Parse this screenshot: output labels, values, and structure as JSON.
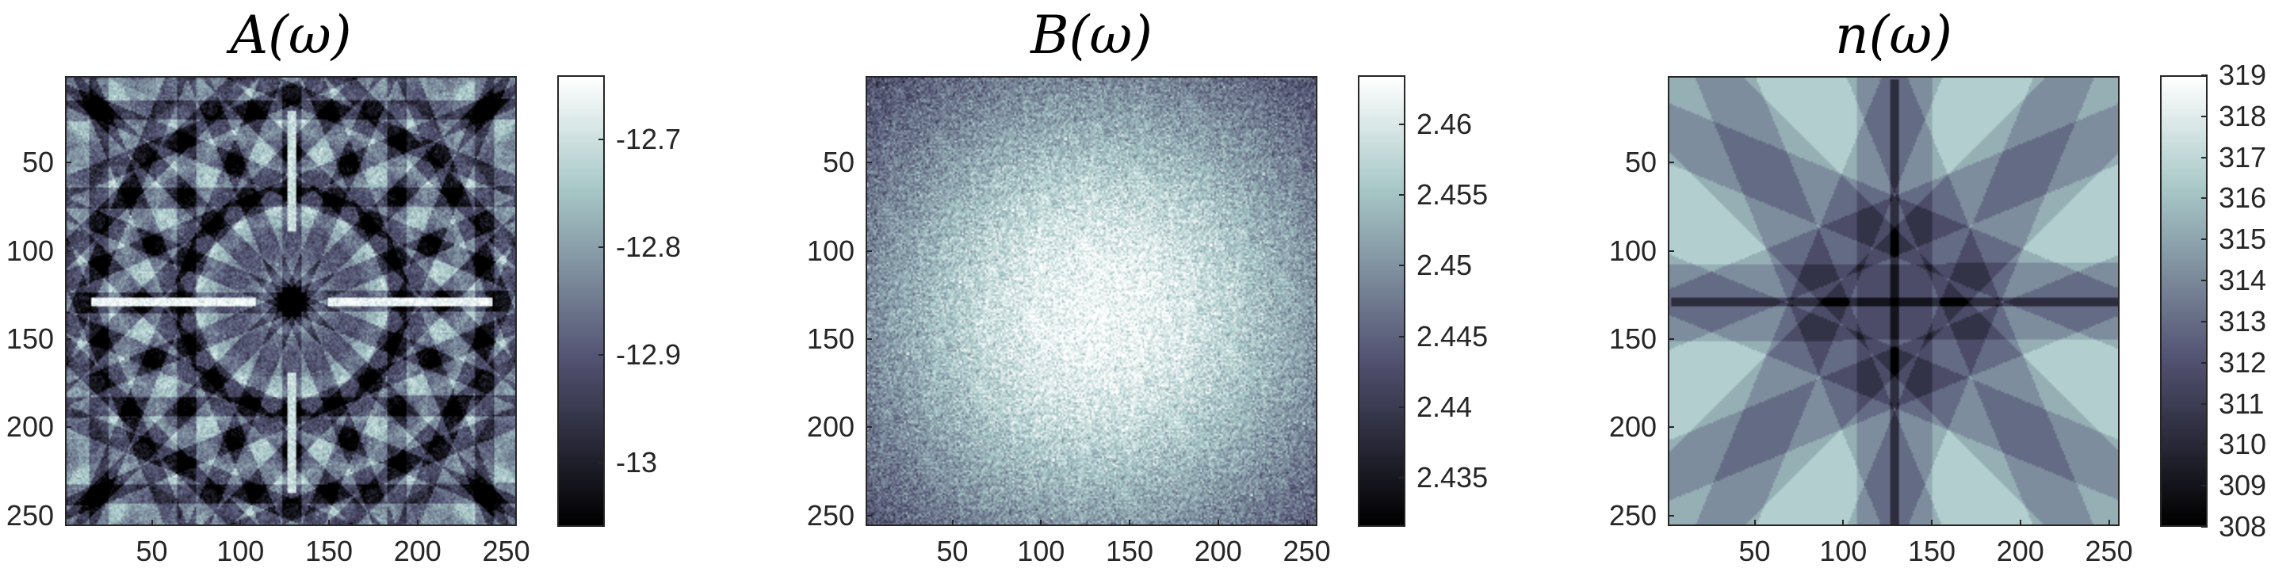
{
  "chart_data": [
    {
      "type": "heatmap",
      "title": "A(ω)",
      "x_ticks": [
        "50",
        "100",
        "150",
        "200",
        "250"
      ],
      "y_ticks": [
        "50",
        "100",
        "150",
        "200",
        "250"
      ],
      "xlim": [
        1,
        256
      ],
      "ylim": [
        1,
        256
      ],
      "y_direction": "down",
      "colormap": "bone",
      "colorbar": {
        "ticks": [
          "-12.7",
          "-12.8",
          "-12.9",
          "-13"
        ],
        "tick_values": [
          -12.7,
          -12.8,
          -12.9,
          -13.0
        ],
        "range": [
          -13.06,
          -12.64
        ]
      },
      "pattern": "kikuchi-bands"
    },
    {
      "type": "heatmap",
      "title": "B(ω)",
      "x_ticks": [
        "50",
        "100",
        "150",
        "200",
        "250"
      ],
      "y_ticks": [
        "50",
        "100",
        "150",
        "200",
        "250"
      ],
      "xlim": [
        1,
        256
      ],
      "ylim": [
        1,
        256
      ],
      "y_direction": "down",
      "colormap": "bone",
      "colorbar": {
        "ticks": [
          "2.46",
          "2.455",
          "2.45",
          "2.445",
          "2.44",
          "2.435"
        ],
        "tick_values": [
          2.46,
          2.455,
          2.45,
          2.445,
          2.44,
          2.435
        ],
        "range": [
          2.4315,
          2.4635
        ]
      },
      "pattern": "noisy-radial-falloff"
    },
    {
      "type": "heatmap",
      "title": "n(ω)",
      "x_ticks": [
        "50",
        "100",
        "150",
        "200",
        "250"
      ],
      "y_ticks": [
        "50",
        "100",
        "150",
        "200",
        "250"
      ],
      "xlim": [
        1,
        256
      ],
      "ylim": [
        1,
        256
      ],
      "y_direction": "down",
      "colormap": "bone",
      "colorbar": {
        "ticks": [
          "319",
          "318",
          "317",
          "316",
          "315",
          "314",
          "313",
          "312",
          "311",
          "310",
          "309",
          "308"
        ],
        "tick_values": [
          319,
          318,
          317,
          316,
          315,
          314,
          313,
          312,
          311,
          310,
          309,
          308
        ],
        "range": [
          308,
          319
        ]
      },
      "pattern": "piecewise-constant-bands"
    }
  ]
}
